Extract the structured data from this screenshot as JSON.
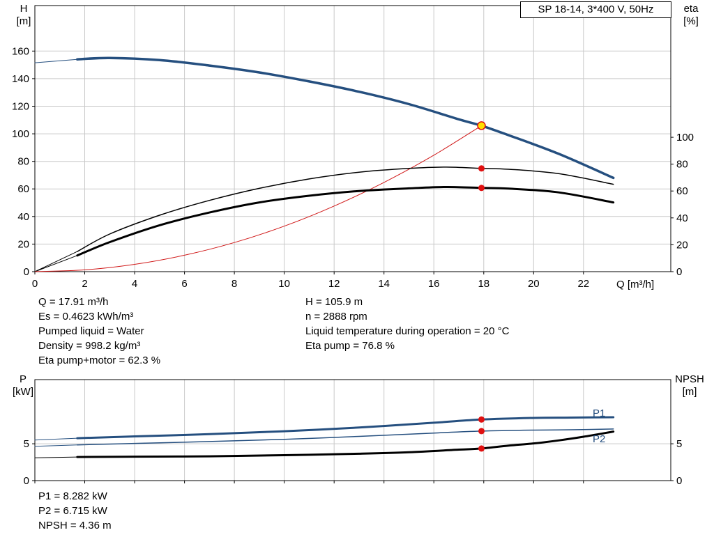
{
  "colors": {
    "grid": "#c9c9c9",
    "axis": "#000000",
    "curve_blue": "#254f7f",
    "curve_black": "#000000",
    "curve_red": "#d01717",
    "marker_red": "#e01010",
    "duty_yellow": "#ffe000"
  },
  "chart_data": [
    {
      "type": "line",
      "title": "SP 18-14, 3*400 V, 50Hz",
      "xlim": [
        0,
        25.5
      ],
      "ylim_left": [
        0,
        193
      ],
      "ylim_right": [
        0,
        198
      ],
      "axis_x": {
        "label": "Q [m³/h]",
        "ticks": [
          0,
          2,
          4,
          6,
          8,
          10,
          12,
          14,
          16,
          18,
          20,
          22
        ],
        "show_tick_labels": true
      },
      "axis_left": {
        "name": "H",
        "unit": "[m]",
        "ticks": [
          0,
          20,
          40,
          60,
          80,
          100,
          120,
          140,
          160
        ]
      },
      "axis_right": {
        "name": "eta",
        "unit": "[%]",
        "ticks": [
          0,
          20,
          40,
          60,
          80,
          100
        ]
      },
      "series": [
        {
          "name": "head-leadin",
          "axis": "left",
          "color": "#254f7f",
          "width": 1,
          "x": [
            0,
            1.7
          ],
          "y": [
            151.5,
            154
          ]
        },
        {
          "name": "eta-pump-leadin",
          "axis": "right",
          "color": "#000000",
          "width": 1,
          "x": [
            0,
            1.7
          ],
          "y": [
            0,
            15
          ]
        },
        {
          "name": "eta-motor-leadin",
          "axis": "right",
          "color": "#000000",
          "width": 1,
          "x": [
            0,
            1.7
          ],
          "y": [
            0,
            12
          ]
        },
        {
          "name": "system-curve",
          "axis": "left",
          "color": "#d01717",
          "width": 1,
          "x": [
            0,
            2,
            4,
            6,
            8,
            10,
            12,
            14,
            16,
            17.91
          ],
          "y": [
            0,
            1.3,
            5.3,
            11.9,
            21.1,
            33,
            47.6,
            64.7,
            84.5,
            105.9
          ]
        },
        {
          "name": "eta-pump-curve",
          "axis": "right",
          "color": "#000000",
          "width": 1.5,
          "x": [
            1.7,
            3,
            5,
            7,
            9,
            11,
            13,
            15,
            16.5,
            17.91,
            19,
            21,
            23.2
          ],
          "y": [
            15,
            28,
            42,
            53,
            62,
            69,
            74,
            76.8,
            77.8,
            76.8,
            76.2,
            73,
            65
          ]
        },
        {
          "name": "eta-motor-curve",
          "axis": "right",
          "color": "#000000",
          "width": 3,
          "x": [
            1.7,
            3,
            5,
            7,
            9,
            11,
            13,
            15,
            16.5,
            17.91,
            19,
            21,
            23.2
          ],
          "y": [
            12,
            22,
            34.5,
            44,
            51.5,
            56.5,
            60,
            62,
            63,
            62.3,
            61.8,
            59,
            51.5
          ]
        },
        {
          "name": "head-curve",
          "axis": "left",
          "color": "#254f7f",
          "width": 3.5,
          "x": [
            1.7,
            3,
            5,
            7,
            9,
            11,
            13,
            15,
            17,
            17.91,
            19,
            21,
            23.2
          ],
          "y": [
            154,
            155,
            153.5,
            149.5,
            144.5,
            138,
            130.5,
            121.5,
            110.5,
            105.9,
            99,
            85.5,
            68
          ]
        }
      ],
      "markers": [
        {
          "name": "duty-point",
          "axis": "left",
          "x": 17.91,
          "y": 105.9,
          "r": 5.5,
          "fill": "#ffe000",
          "stroke": "#e01010",
          "stroke_width": 1.5
        },
        {
          "name": "eta-pump-point",
          "axis": "right",
          "x": 17.91,
          "y": 76.8,
          "r": 4.5,
          "fill": "#e01010"
        },
        {
          "name": "eta-motor-point",
          "axis": "right",
          "x": 17.91,
          "y": 62.3,
          "r": 4.5,
          "fill": "#e01010"
        }
      ]
    },
    {
      "type": "line",
      "title": "",
      "xlim": [
        0,
        25.5
      ],
      "ylim_left": [
        0,
        13.7
      ],
      "ylim_right": [
        0,
        13.7
      ],
      "axis_x": {
        "label": "",
        "ticks": [
          0,
          2,
          4,
          6,
          8,
          10,
          12,
          14,
          16,
          18,
          20,
          22
        ],
        "show_tick_labels": false
      },
      "axis_left": {
        "name": "P",
        "unit": "[kW]",
        "ticks": [
          0,
          5
        ]
      },
      "axis_right": {
        "name": "NPSH",
        "unit": "[m]",
        "ticks": [
          0,
          5
        ]
      },
      "series": [
        {
          "name": "p1-leadin",
          "axis": "left",
          "color": "#254f7f",
          "width": 1,
          "x": [
            0,
            1.7
          ],
          "y": [
            5.5,
            5.75
          ]
        },
        {
          "name": "p2-leadin",
          "axis": "left",
          "color": "#254f7f",
          "width": 1,
          "x": [
            0,
            1.7
          ],
          "y": [
            4.65,
            4.85
          ]
        },
        {
          "name": "npsh-leadin",
          "axis": "right",
          "color": "#000000",
          "width": 1,
          "x": [
            0,
            1.7
          ],
          "y": [
            3.1,
            3.2
          ]
        },
        {
          "name": "p2-curve",
          "axis": "left",
          "color": "#254f7f",
          "width": 1.5,
          "x": [
            1.7,
            4,
            7,
            10,
            13,
            16,
            17.91,
            20,
            21.5,
            23.2
          ],
          "y": [
            4.85,
            5.05,
            5.3,
            5.6,
            6.0,
            6.45,
            6.715,
            6.85,
            6.9,
            7.0
          ]
        },
        {
          "name": "p1-curve",
          "axis": "left",
          "color": "#254f7f",
          "width": 3,
          "x": [
            1.7,
            4,
            7,
            10,
            13,
            16,
            17.91,
            20,
            21.5,
            23.2
          ],
          "y": [
            5.75,
            6.0,
            6.3,
            6.7,
            7.2,
            7.85,
            8.282,
            8.5,
            8.55,
            8.6
          ]
        },
        {
          "name": "npsh-curve",
          "axis": "right",
          "color": "#000000",
          "width": 3,
          "x": [
            1.7,
            4,
            7,
            10,
            13,
            15,
            17,
            17.91,
            19,
            20,
            21,
            22,
            23.2
          ],
          "y": [
            3.2,
            3.25,
            3.3,
            3.45,
            3.65,
            3.85,
            4.2,
            4.36,
            4.75,
            5.05,
            5.45,
            5.95,
            6.65
          ]
        }
      ],
      "markers": [
        {
          "name": "p1-point",
          "axis": "left",
          "x": 17.91,
          "y": 8.282,
          "r": 4.5,
          "fill": "#e01010"
        },
        {
          "name": "p2-point",
          "axis": "left",
          "x": 17.91,
          "y": 6.715,
          "r": 4.5,
          "fill": "#e01010"
        },
        {
          "name": "npsh-point",
          "axis": "right",
          "x": 17.91,
          "y": 4.36,
          "r": 4.5,
          "fill": "#e01010"
        }
      ],
      "series_labels": [
        {
          "text": "P1",
          "color": "#254f7f"
        },
        {
          "text": "P2",
          "color": "#254f7f"
        }
      ]
    }
  ],
  "annotations": {
    "top_left": [
      "Q = 17.91 m³/h",
      "Es = 0.4623 kWh/m³",
      "Pumped liquid = Water",
      "Density = 998.2 kg/m³",
      "Eta pump+motor = 62.3 %"
    ],
    "top_right": [
      "H = 105.9 m",
      "n = 2888 rpm",
      "Liquid temperature during operation = 20 °C",
      "Eta pump = 76.8 %"
    ],
    "bottom": [
      "P1 = 8.282 kW",
      "P2 = 6.715 kW",
      "NPSH = 4.36 m"
    ]
  }
}
